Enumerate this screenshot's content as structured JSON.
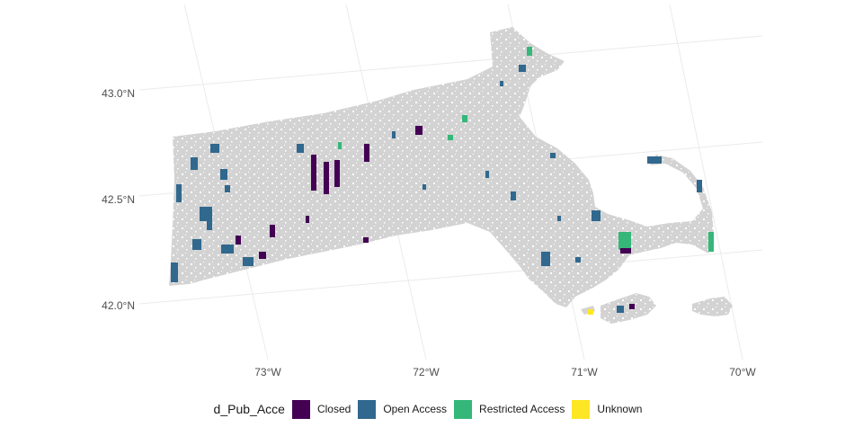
{
  "map": {
    "lat_labels": [
      "43.0°N",
      "42.5°N",
      "42.0°N"
    ],
    "lon_labels": [
      "73°W",
      "72°W",
      "71°W",
      "70°W"
    ],
    "base_fill": "#d3d3d3",
    "grid_color": "#ebebeb"
  },
  "legend": {
    "title": "d_Pub_Acce",
    "items": [
      {
        "label": "Closed",
        "color": "#440154"
      },
      {
        "label": "Open Access",
        "color": "#31688e"
      },
      {
        "label": "Restricted Access",
        "color": "#35b779"
      },
      {
        "label": "Unknown",
        "color": "#fde725"
      }
    ]
  }
}
